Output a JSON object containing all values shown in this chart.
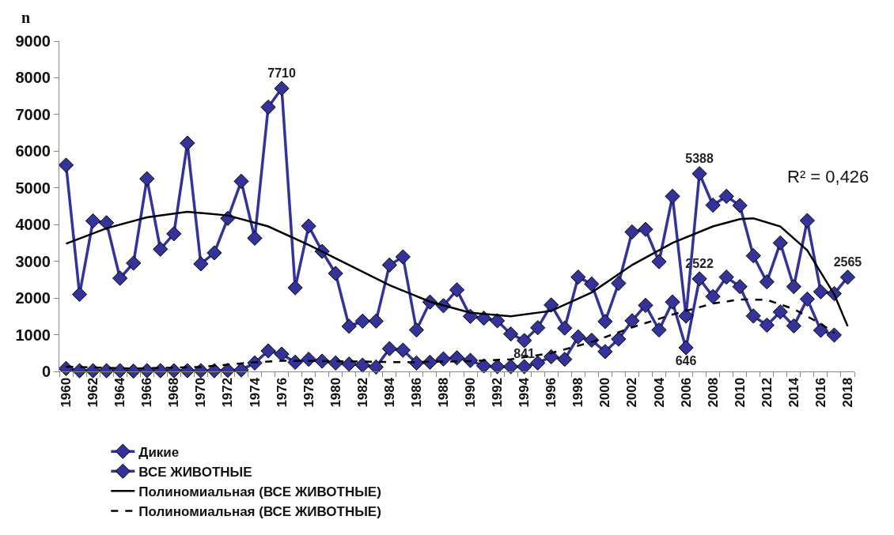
{
  "chart_data": {
    "type": "line",
    "ylabel": "n",
    "x": [
      1960,
      1961,
      1962,
      1963,
      1964,
      1965,
      1966,
      1967,
      1968,
      1969,
      1970,
      1971,
      1972,
      1973,
      1974,
      1975,
      1976,
      1977,
      1978,
      1979,
      1980,
      1981,
      1982,
      1983,
      1984,
      1985,
      1986,
      1987,
      1988,
      1989,
      1990,
      1991,
      1992,
      1993,
      1994,
      1995,
      1996,
      1997,
      1998,
      1999,
      2000,
      2001,
      2002,
      2003,
      2004,
      2005,
      2006,
      2007,
      2008,
      2009,
      2010,
      2011,
      2012,
      2013,
      2014,
      2015,
      2016,
      2017,
      2018
    ],
    "series": [
      {
        "name": "Дикие",
        "color": "#333399",
        "marker": "diamond",
        "x": [
          1960,
          1961,
          1962,
          1963,
          1964,
          1965,
          1966,
          1967,
          1968,
          1969,
          1970,
          1971,
          1972,
          1973,
          1974,
          1975,
          1976,
          1977,
          1978,
          1979,
          1980,
          1981,
          1982,
          1983,
          1984,
          1985,
          1986,
          1987,
          1988,
          1989,
          1990,
          1991,
          1992,
          1993,
          1994,
          1995,
          1996,
          1997,
          1998,
          1999,
          2000,
          2001,
          2002,
          2003,
          2004,
          2005,
          2006,
          2007,
          2008,
          2009,
          2010,
          2011,
          2012,
          2013,
          2014,
          2015,
          2016,
          2017
        ],
        "values": [
          80,
          20,
          20,
          20,
          20,
          10,
          20,
          20,
          20,
          20,
          20,
          20,
          30,
          40,
          230,
          560,
          470,
          250,
          330,
          280,
          230,
          200,
          170,
          120,
          620,
          580,
          230,
          250,
          340,
          370,
          300,
          150,
          130,
          130,
          130,
          230,
          400,
          330,
          940,
          850,
          540,
          880,
          1380,
          1800,
          1130,
          1890,
          646,
          2522,
          2040,
          2570,
          2310,
          1510,
          1260,
          1620,
          1240,
          1970,
          1120,
          990
        ],
        "value_labels": [
          null,
          null,
          null,
          null,
          null,
          null,
          null,
          null,
          null,
          null,
          null,
          null,
          null,
          null,
          null,
          null,
          null,
          null,
          null,
          null,
          null,
          null,
          null,
          null,
          null,
          null,
          null,
          null,
          null,
          null,
          null,
          null,
          null,
          null,
          null,
          null,
          null,
          null,
          null,
          null,
          null,
          null,
          null,
          null,
          null,
          null,
          "646",
          "2522",
          null,
          null,
          null,
          null,
          null,
          null,
          null,
          null,
          null,
          null
        ]
      },
      {
        "name": "ВСЕ ЖИВОТНЫЕ",
        "color": "#333399",
        "marker": "diamond",
        "values": [
          5620,
          2100,
          4100,
          4050,
          2540,
          2950,
          5250,
          3330,
          3750,
          6220,
          2930,
          3230,
          4170,
          5180,
          3630,
          7200,
          7710,
          2280,
          3960,
          3270,
          2670,
          1230,
          1370,
          1370,
          2900,
          3120,
          1130,
          1890,
          1790,
          2220,
          1500,
          1450,
          1380,
          1020,
          841,
          1190,
          1810,
          1180,
          2570,
          2380,
          1360,
          2400,
          3800,
          3870,
          2990,
          4770,
          1510,
          5388,
          4530,
          4770,
          4520,
          3150,
          2440,
          3500,
          2310,
          4110,
          2170,
          2120,
          2565
        ],
        "value_labels": [
          null,
          null,
          null,
          null,
          null,
          null,
          null,
          null,
          null,
          null,
          null,
          null,
          null,
          null,
          null,
          null,
          "7710",
          null,
          null,
          null,
          null,
          null,
          null,
          null,
          null,
          null,
          null,
          null,
          null,
          null,
          null,
          null,
          null,
          null,
          "841",
          null,
          null,
          null,
          null,
          null,
          null,
          null,
          null,
          null,
          null,
          null,
          null,
          "5388",
          null,
          null,
          null,
          null,
          null,
          null,
          null,
          null,
          null,
          null,
          "2565"
        ]
      },
      {
        "name": "Полиномиальная (ВСЕ ЖИВОТНЫЕ)",
        "color": "#000000",
        "marker": "none",
        "line_style": "solid",
        "x": [
          1960,
          1963,
          1966,
          1969,
          1972,
          1975,
          1978,
          1981,
          1984,
          1987,
          1990,
          1993,
          1996,
          1999,
          2002,
          2005,
          2008,
          2010,
          2011,
          2013,
          2015,
          2017,
          2018
        ],
        "values": [
          3480,
          3900,
          4200,
          4350,
          4250,
          3950,
          3450,
          2900,
          2350,
          1900,
          1600,
          1500,
          1650,
          2150,
          2900,
          3500,
          3950,
          4150,
          4170,
          3950,
          3300,
          2100,
          1230
        ]
      },
      {
        "name": "Полиномиальная (ВСЕ ЖИВОТНЫЕ)",
        "color": "#000000",
        "marker": "none",
        "line_style": "dashed",
        "x": [
          1960,
          1965,
          1970,
          1974,
          1976,
          1980,
          1985,
          1990,
          1993,
          1996,
          1999,
          2002,
          2005,
          2008,
          2010,
          2012,
          2014,
          2016,
          2017
        ],
        "values": [
          130,
          80,
          120,
          250,
          290,
          280,
          250,
          280,
          330,
          500,
          800,
          1200,
          1550,
          1850,
          1960,
          1950,
          1700,
          1300,
          1050
        ]
      }
    ],
    "xlim": [
      1959.5,
      2018.5
    ],
    "xticks": [
      1960,
      1962,
      1964,
      1966,
      1968,
      1970,
      1972,
      1974,
      1976,
      1978,
      1980,
      1982,
      1984,
      1986,
      1988,
      1990,
      1992,
      1994,
      1996,
      1998,
      2000,
      2002,
      2004,
      2006,
      2008,
      2010,
      2012,
      2014,
      2016,
      2018
    ],
    "ylim": [
      0,
      9000
    ],
    "yticks": [
      0,
      1000,
      2000,
      3000,
      4000,
      5000,
      6000,
      7000,
      8000,
      9000
    ],
    "grid": false,
    "legend": "bottom",
    "annotations": [
      "R² = 0,426"
    ]
  }
}
